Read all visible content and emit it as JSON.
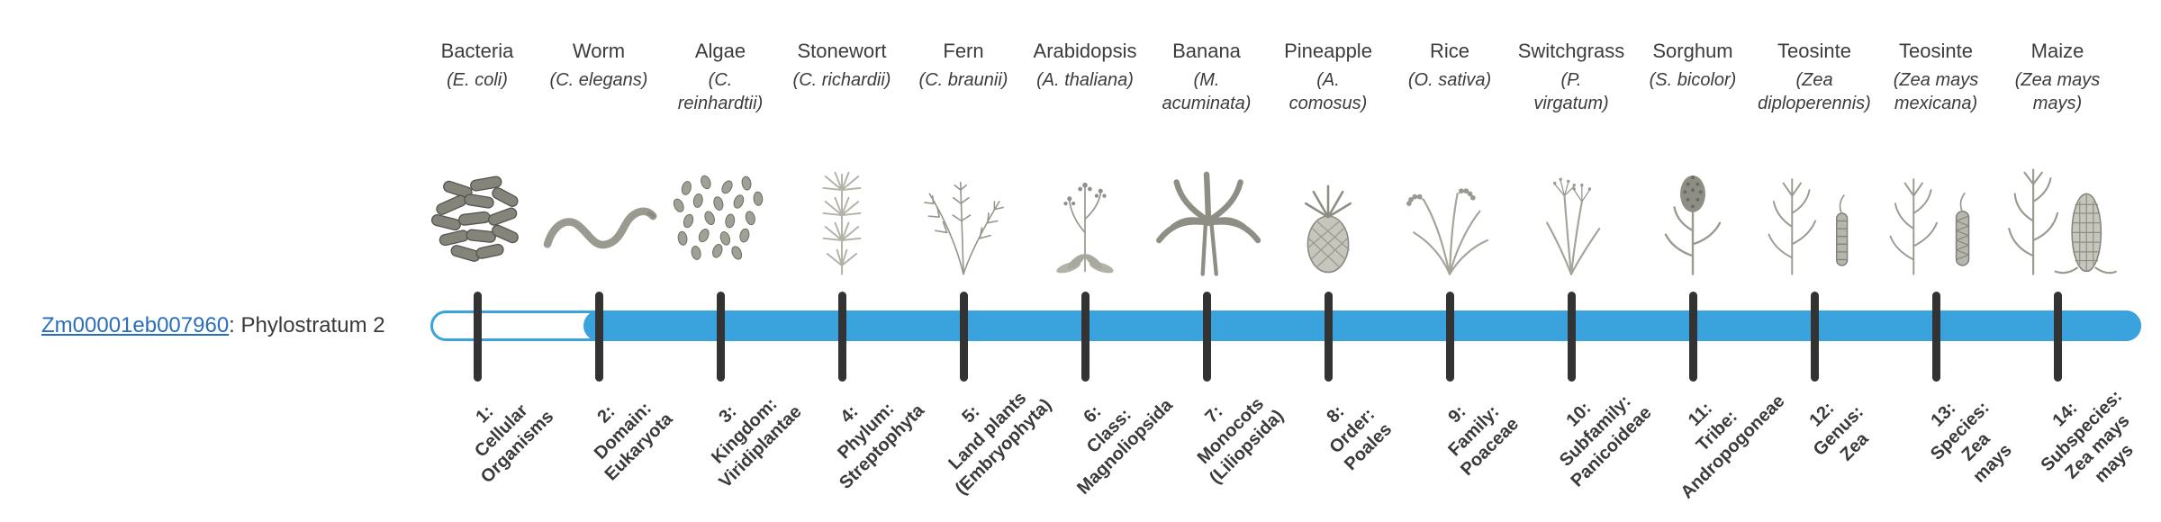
{
  "gene": {
    "id": "Zm00001eb007960",
    "suffix": ": Phylostratum 2",
    "phylostratum": 2
  },
  "colors": {
    "bar": "#3aa2dc",
    "tick": "#333333",
    "link": "#2a6ebb"
  },
  "timeline": {
    "total_strata": 14,
    "filled_from_stratum": 2
  },
  "columns": [
    {
      "name": "Bacteria",
      "scientific": "(E. coli)",
      "illustration": "bacteria",
      "stratum_label": "1:\nCellular\nOrganisms"
    },
    {
      "name": "Worm",
      "scientific": "(C. elegans)",
      "illustration": "worm",
      "stratum_label": "2:\nDomain:\nEukaryota"
    },
    {
      "name": "Algae",
      "scientific": "(C.\nreinhardtii)",
      "illustration": "algae",
      "stratum_label": "3:\nKingdom:\nViridiplantae"
    },
    {
      "name": "Stonewort",
      "scientific": "(C. richardii)",
      "illustration": "stonewort",
      "stratum_label": "4:\nPhylum:\nStreptophyta"
    },
    {
      "name": "Fern",
      "scientific": "(C. braunii)",
      "illustration": "fern",
      "stratum_label": "5:\nLand plants\n(Embryophyta)"
    },
    {
      "name": "Arabidopsis",
      "scientific": "(A. thaliana)",
      "illustration": "arabidopsis",
      "stratum_label": "6:\nClass:\nMagnoliopsida"
    },
    {
      "name": "Banana",
      "scientific": "(M.\nacuminata)",
      "illustration": "banana",
      "stratum_label": "7:\nMonocots\n(Liliopsida)"
    },
    {
      "name": "Pineapple",
      "scientific": "(A.\ncomosus)",
      "illustration": "pineapple",
      "stratum_label": "8:\nOrder:\nPoales"
    },
    {
      "name": "Rice",
      "scientific": "(O. sativa)",
      "illustration": "rice",
      "stratum_label": "9:\nFamily:\nPoaceae"
    },
    {
      "name": "Switchgrass",
      "scientific": "(P.\nvirgatum)",
      "illustration": "switchgrass",
      "stratum_label": "10:\nSubfamily:\nPanicoideae"
    },
    {
      "name": "Sorghum",
      "scientific": "(S. bicolor)",
      "illustration": "sorghum",
      "stratum_label": "11:\nTribe:\nAndropogoneae"
    },
    {
      "name": "Teosinte",
      "scientific": "(Zea\ndiploperennis)",
      "illustration": "teosinte1",
      "stratum_label": "12:\nGenus:\nZea"
    },
    {
      "name": "Teosinte",
      "scientific": "(Zea mays\nmexicana)",
      "illustration": "teosinte2",
      "stratum_label": "13:\nSpecies:\nZea\nmays"
    },
    {
      "name": "Maize",
      "scientific": "(Zea mays\nmays)",
      "illustration": "maize",
      "stratum_label": "14:\nSubspecies:\nZea mays\nmays"
    }
  ]
}
